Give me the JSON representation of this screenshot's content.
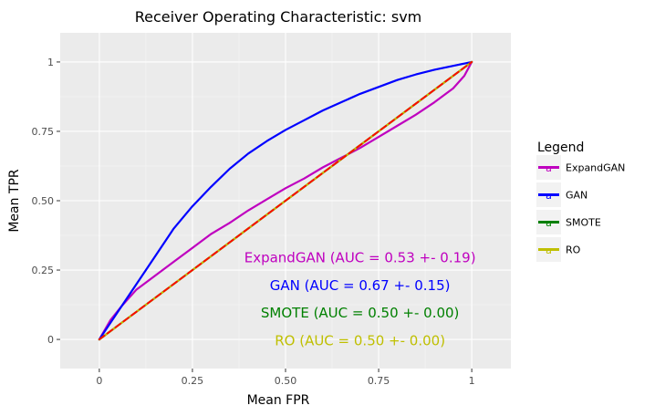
{
  "chart_data": {
    "type": "line",
    "title": "Receiver Operating Characteristic: svm",
    "xlabel": "Mean FPR",
    "ylabel": "Mean TPR",
    "xlim": [
      -0.105,
      1.105
    ],
    "ylim": [
      -0.105,
      1.105
    ],
    "x_ticks": [
      {
        "value": 0,
        "label": "0"
      },
      {
        "value": 0.25,
        "label": "0.25"
      },
      {
        "value": 0.5,
        "label": "0.50"
      },
      {
        "value": 0.75,
        "label": "0.75"
      },
      {
        "value": 1,
        "label": "1"
      }
    ],
    "y_ticks": [
      {
        "value": 0,
        "label": "0"
      },
      {
        "value": 0.25,
        "label": "0.25"
      },
      {
        "value": 0.5,
        "label": "0.50"
      },
      {
        "value": 0.75,
        "label": "0.75"
      },
      {
        "value": 1,
        "label": "1"
      }
    ],
    "grid": true,
    "legend": {
      "title": "Legend",
      "placement": "right",
      "key_glyph": "a"
    },
    "series": [
      {
        "name": "ExpandGAN",
        "color": "#bf00bf",
        "dash": "solid",
        "x": [
          0,
          0.03,
          0.06,
          0.1,
          0.15,
          0.2,
          0.25,
          0.3,
          0.35,
          0.4,
          0.45,
          0.5,
          0.55,
          0.6,
          0.65,
          0.7,
          0.75,
          0.8,
          0.85,
          0.9,
          0.95,
          0.98,
          1
        ],
        "y": [
          0,
          0.07,
          0.12,
          0.18,
          0.23,
          0.28,
          0.33,
          0.38,
          0.42,
          0.465,
          0.505,
          0.545,
          0.58,
          0.62,
          0.655,
          0.69,
          0.73,
          0.77,
          0.81,
          0.855,
          0.905,
          0.95,
          1
        ]
      },
      {
        "name": "GAN",
        "color": "#0000ff",
        "dash": "solid",
        "x": [
          0,
          0.05,
          0.1,
          0.15,
          0.2,
          0.25,
          0.3,
          0.35,
          0.4,
          0.45,
          0.5,
          0.55,
          0.6,
          0.65,
          0.7,
          0.75,
          0.8,
          0.85,
          0.9,
          0.95,
          1
        ],
        "y": [
          0,
          0.1,
          0.2,
          0.3,
          0.4,
          0.48,
          0.55,
          0.615,
          0.67,
          0.715,
          0.755,
          0.79,
          0.825,
          0.855,
          0.885,
          0.91,
          0.935,
          0.955,
          0.972,
          0.986,
          1
        ]
      },
      {
        "name": "SMOTE",
        "color": "#008000",
        "dash": "solid",
        "x": [
          0,
          1
        ],
        "y": [
          0,
          1
        ]
      },
      {
        "name": "RO",
        "color": "#bfbf00",
        "dash": "solid",
        "x": [
          0,
          1
        ],
        "y": [
          0,
          1
        ]
      },
      {
        "name": "",
        "color": "#ff0000",
        "dash": "dashed",
        "x": [
          0,
          1
        ],
        "y": [
          0,
          1
        ]
      }
    ],
    "annotations": [
      {
        "text": "ExpandGAN (AUC = 0.53 +- 0.19)",
        "x": 0.7,
        "y": 0.295,
        "color": "#bf00bf"
      },
      {
        "text": "GAN (AUC = 0.67 +- 0.15)",
        "x": 0.7,
        "y": 0.195,
        "color": "#0000ff"
      },
      {
        "text": "SMOTE (AUC = 0.50 +- 0.00)",
        "x": 0.7,
        "y": 0.095,
        "color": "#008000"
      },
      {
        "text": "RO (AUC = 0.50 +- 0.00)",
        "x": 0.7,
        "y": -0.005,
        "color": "#bfbf00"
      }
    ]
  }
}
